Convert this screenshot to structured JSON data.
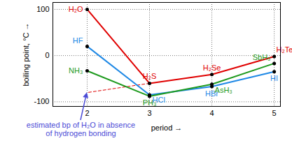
{
  "chart_data": {
    "type": "line",
    "x_label": "period",
    "y_label": "boiling point, °C",
    "xlim": [
      1.45,
      5.1
    ],
    "ylim": [
      -110,
      115
    ],
    "xticks": [
      2,
      3,
      4,
      5
    ],
    "yticks": [
      -100,
      0,
      100
    ],
    "grid": true,
    "marker": "circle",
    "x": [
      2,
      3,
      4,
      5
    ],
    "series": [
      {
        "color": "#e00000",
        "point_labels": [
          "H₂O",
          "H₂S",
          "H₂Se",
          "H₂Te"
        ],
        "values": [
          100,
          -60,
          -41,
          -2
        ]
      },
      {
        "color": "#1e88e5",
        "point_labels": [
          "HF",
          "HCl",
          "HBr",
          "HI"
        ],
        "values": [
          20,
          -85,
          -67,
          -35
        ]
      },
      {
        "color": "#1e9a1e",
        "point_labels": [
          "NH₃",
          "PH₃",
          "AsH₃",
          "SbH₃"
        ],
        "values": [
          -33,
          -88,
          -62,
          -17
        ]
      }
    ],
    "annotations": [
      {
        "text": [
          "estimated bp of H₂O in absence",
          "of hydrogen bonding"
        ],
        "x": [
          3,
          2
        ],
        "values": [
          -60,
          -80
        ],
        "color": "#e00000",
        "line_style": "dashed"
      }
    ]
  }
}
